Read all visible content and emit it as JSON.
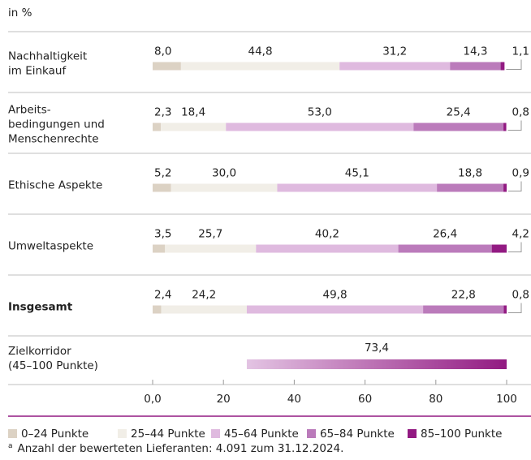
{
  "chart_data": {
    "type": "stacked-bar-horizontal",
    "axis_label": "in %",
    "categories": [
      [
        "Nachhaltigkeit",
        "im Einkauf"
      ],
      [
        "Arbeits-",
        "bedingungen und",
        "Menschenrechte"
      ],
      [
        "Ethische Aspekte"
      ],
      [
        "Umweltaspekte"
      ],
      [
        "Insgesamt"
      ]
    ],
    "series": [
      {
        "name": "0–24 Punkte",
        "color": "#dcd2c4",
        "values": [
          8.0,
          2.3,
          5.2,
          3.5,
          2.4
        ],
        "value_labels": [
          "8,0",
          "2,3",
          "5,2",
          "3,5",
          "2,4"
        ]
      },
      {
        "name": "25–44 Punkte",
        "color": "#f1eee7",
        "values": [
          44.8,
          18.4,
          30.0,
          25.7,
          24.2
        ],
        "value_labels": [
          "44,8",
          "18,4",
          "30,0",
          "25,7",
          "24,2"
        ]
      },
      {
        "name": "45–64 Punkte",
        "color": "#dfbadf",
        "values": [
          31.2,
          53.0,
          45.1,
          40.2,
          49.8
        ],
        "value_labels": [
          "31,2",
          "53,0",
          "45,1",
          "40,2",
          "49,8"
        ]
      },
      {
        "name": "65–84 Punkte",
        "color": "#bb7bbb",
        "values": [
          14.3,
          25.4,
          18.8,
          26.4,
          22.8
        ],
        "value_labels": [
          "14,3",
          "25,4",
          "18,8",
          "26,4",
          "22,8"
        ]
      },
      {
        "name": "85–100 Punkte",
        "color": "#921a82",
        "values": [
          1.1,
          0.8,
          0.9,
          4.2,
          0.8
        ],
        "value_labels": [
          "1,1",
          "0,8",
          "0,9",
          "4,2",
          "0,8"
        ]
      }
    ],
    "target": {
      "label": [
        "Zielkorridor",
        "(45–100 Punkte)"
      ],
      "start": 26.6,
      "value": 73.4,
      "value_label": "73,4",
      "colors": [
        "#e3c4e3",
        "#921a82"
      ]
    },
    "xlim": [
      0,
      100
    ],
    "xticks": [
      {
        "value": 0,
        "label": "0,0"
      },
      20,
      40,
      60,
      80,
      100
    ],
    "footnote": {
      "marker": "a",
      "text": "Anzahl der bewerteten Lieferanten: 4.091 zum 31.12.2024."
    }
  }
}
